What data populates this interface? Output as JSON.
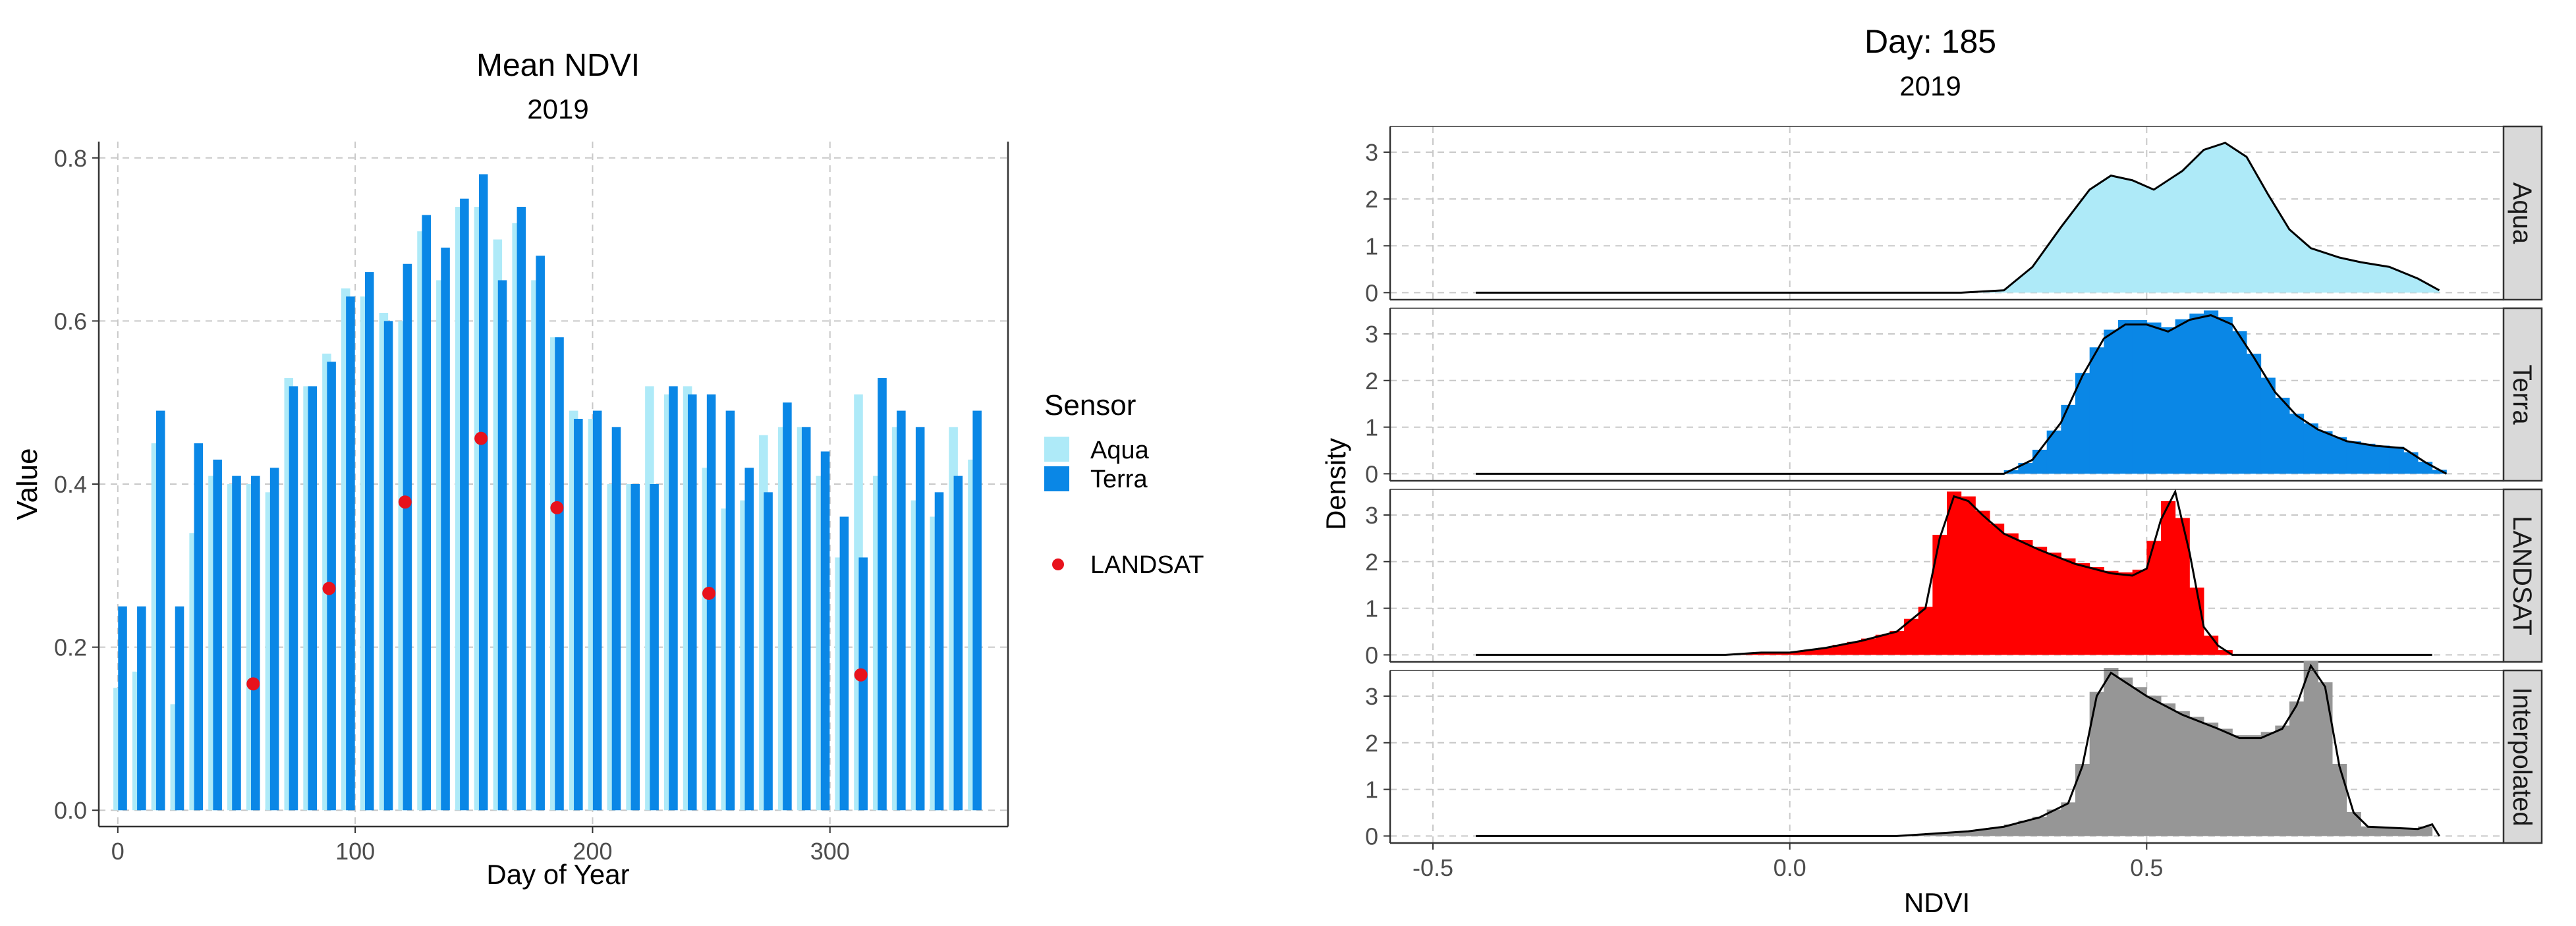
{
  "chart_data": [
    {
      "type": "bar",
      "title": "Mean NDVI",
      "subtitle": "2019",
      "xlabel": "Day of Year",
      "ylabel": "Value",
      "xlim": [
        -8,
        375
      ],
      "ylim": [
        -0.02,
        0.82
      ],
      "x_ticks": [
        "0",
        "100",
        "200",
        "300"
      ],
      "y_ticks": [
        "0.0",
        "0.2",
        "0.4",
        "0.6",
        "0.8"
      ],
      "grid": true,
      "legend_title": "Sensor",
      "legend_position": "right",
      "series": [
        {
          "name": "Aqua",
          "color": "#aeeaf8",
          "x": [
            0,
            8,
            16,
            24,
            32,
            40,
            48,
            56,
            64,
            72,
            80,
            88,
            96,
            104,
            112,
            120,
            128,
            136,
            144,
            152,
            160,
            168,
            176,
            184,
            192,
            200,
            208,
            216,
            224,
            232,
            240,
            248,
            256,
            264,
            272,
            280,
            288,
            296,
            304,
            312,
            320,
            328,
            336,
            344,
            352,
            360
          ],
          "values": [
            0.15,
            0.17,
            0.45,
            0.13,
            0.34,
            0.41,
            0.4,
            0.4,
            0.39,
            0.53,
            0.52,
            0.56,
            0.64,
            0.63,
            0.61,
            0.6,
            0.71,
            0.65,
            0.74,
            0.74,
            0.7,
            0.72,
            0.65,
            0.58,
            0.49,
            0.48,
            0.4,
            0.4,
            0.52,
            0.51,
            0.52,
            0.42,
            0.37,
            0.38,
            0.46,
            0.47,
            0.47,
            0.41,
            0.31,
            0.51,
            0.41,
            0.47,
            0.38,
            0.36,
            0.47,
            0.43
          ]
        },
        {
          "name": "Terra",
          "color": "#0a87e6",
          "x": [
            2,
            10,
            18,
            26,
            34,
            42,
            50,
            58,
            66,
            74,
            82,
            90,
            98,
            106,
            114,
            122,
            130,
            138,
            146,
            154,
            162,
            170,
            178,
            186,
            194,
            202,
            210,
            218,
            226,
            234,
            242,
            250,
            258,
            266,
            274,
            282,
            290,
            298,
            306,
            314,
            322,
            330,
            338,
            346,
            354,
            362
          ],
          "values": [
            0.25,
            0.25,
            0.49,
            0.25,
            0.45,
            0.43,
            0.41,
            0.41,
            0.42,
            0.52,
            0.52,
            0.55,
            0.63,
            0.66,
            0.6,
            0.67,
            0.73,
            0.69,
            0.75,
            0.78,
            0.65,
            0.74,
            0.68,
            0.58,
            0.48,
            0.49,
            0.47,
            0.4,
            0.4,
            0.52,
            0.51,
            0.51,
            0.49,
            0.42,
            0.39,
            0.5,
            0.47,
            0.44,
            0.36,
            0.31,
            0.53,
            0.49,
            0.47,
            0.39,
            0.41,
            0.49
          ]
        },
        {
          "name": "LANDSAT",
          "type": "scatter",
          "color": "#e8121c",
          "x": [
            57,
            89,
            121,
            153,
            185,
            249,
            313
          ],
          "values": [
            0.155,
            0.272,
            0.378,
            0.456,
            0.371,
            0.266,
            0.166
          ]
        }
      ]
    },
    {
      "type": "area",
      "title": "Day: 185",
      "subtitle": "2019",
      "xlabel": "NDVI",
      "ylabel": "Density",
      "xlim": [
        -0.56,
        1.0
      ],
      "ylim": [
        -0.15,
        3.55
      ],
      "x_ticks": [
        "-0.5",
        "0.0",
        "0.5"
      ],
      "y_ticks": [
        "0",
        "1",
        "2",
        "3"
      ],
      "grid": true,
      "panels": [
        {
          "strip": "Aqua",
          "fill": "#aeeaf8",
          "histogram": false,
          "x": [
            -0.44,
            0.24,
            0.3,
            0.34,
            0.38,
            0.42,
            0.45,
            0.48,
            0.51,
            0.55,
            0.58,
            0.61,
            0.64,
            0.67,
            0.7,
            0.73,
            0.77,
            0.8,
            0.84,
            0.88,
            0.91
          ],
          "density": [
            0.0,
            0.0,
            0.05,
            0.55,
            1.4,
            2.2,
            2.5,
            2.4,
            2.2,
            2.6,
            3.05,
            3.2,
            2.9,
            2.1,
            1.35,
            0.95,
            0.75,
            0.65,
            0.55,
            0.3,
            0.05
          ]
        },
        {
          "strip": "Terra",
          "fill": "#0a87e6",
          "histogram": true,
          "x": [
            -0.44,
            0.3,
            0.34,
            0.38,
            0.41,
            0.44,
            0.47,
            0.5,
            0.53,
            0.56,
            0.59,
            0.62,
            0.65,
            0.68,
            0.71,
            0.74,
            0.78,
            0.82,
            0.86,
            0.89,
            0.92
          ],
          "density": [
            0.0,
            0.0,
            0.3,
            1.1,
            2.1,
            2.9,
            3.2,
            3.2,
            3.05,
            3.3,
            3.4,
            3.2,
            2.5,
            1.75,
            1.25,
            0.95,
            0.7,
            0.6,
            0.55,
            0.25,
            0.0
          ]
        },
        {
          "strip": "LANDSAT",
          "fill": "#ff0000",
          "histogram": true,
          "x": [
            -0.44,
            -0.09,
            -0.04,
            0.0,
            0.05,
            0.1,
            0.15,
            0.19,
            0.21,
            0.23,
            0.25,
            0.27,
            0.3,
            0.35,
            0.4,
            0.45,
            0.48,
            0.5,
            0.52,
            0.54,
            0.56,
            0.58,
            0.6,
            0.62,
            0.9
          ],
          "density": [
            0.0,
            0.0,
            0.05,
            0.05,
            0.15,
            0.3,
            0.5,
            1.0,
            2.5,
            3.4,
            3.3,
            3.0,
            2.6,
            2.25,
            1.95,
            1.75,
            1.7,
            1.85,
            2.9,
            3.5,
            2.2,
            0.6,
            0.2,
            0.0,
            0.0
          ]
        },
        {
          "strip": "Interpolated",
          "fill": "#969696",
          "histogram": true,
          "x": [
            -0.44,
            0.15,
            0.2,
            0.25,
            0.3,
            0.35,
            0.39,
            0.41,
            0.43,
            0.45,
            0.47,
            0.5,
            0.55,
            0.6,
            0.63,
            0.66,
            0.69,
            0.71,
            0.73,
            0.75,
            0.77,
            0.79,
            0.81,
            0.88,
            0.9,
            0.91
          ],
          "density": [
            0.0,
            0.0,
            0.05,
            0.1,
            0.2,
            0.4,
            0.7,
            1.5,
            3.0,
            3.5,
            3.3,
            3.0,
            2.6,
            2.3,
            2.1,
            2.1,
            2.3,
            2.8,
            3.65,
            3.2,
            1.5,
            0.5,
            0.2,
            0.15,
            0.25,
            0.0
          ]
        }
      ]
    }
  ]
}
